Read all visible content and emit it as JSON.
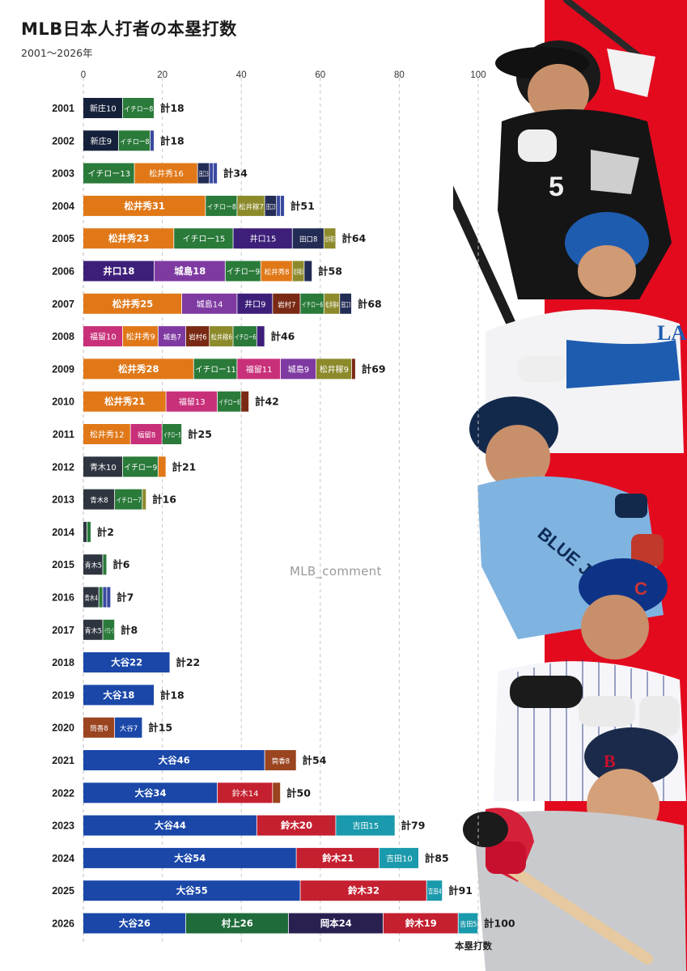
{
  "header": {
    "title": "MLB日本人打者の本塁打数",
    "subtitle": "2001〜2026年"
  },
  "watermark": "MLB_comment",
  "total_prefix": "計",
  "colors": {
    "新庄": "#15213a",
    "イチロー": "#2a7a3a",
    "松井秀": "#e07818",
    "松井稼": "#8c8a2a",
    "田口": "#232c55",
    "井口": "#3d1f7a",
    "城島": "#7f3aa2",
    "岩村": "#7a2a14",
    "福留": "#c8307a",
    "青木": "#2f3540",
    "大谷": "#1a47a8",
    "筒香": "#9a4420",
    "鈴木": "#c42030",
    "吉田": "#1a9aac",
    "村上": "#1f6b3a",
    "岡本": "#2a2050",
    "other": "#3a4aa0",
    "accent_band": "#e30a1e"
  },
  "photo_icons": [
    "player-photo-whitesox",
    "player-photo-dodgers",
    "player-photo-bluejays",
    "player-photo-cubs",
    "player-photo-redsox"
  ],
  "photo_text": [
    "5",
    "LA",
    "BLUE JAYS",
    "C",
    "B"
  ],
  "chart_data": {
    "type": "bar",
    "stacked": true,
    "orientation": "horizontal",
    "title": "MLB日本人打者の本塁打数",
    "subtitle": "2001〜2026年",
    "xlabel": "本塁打数",
    "xlim": [
      0,
      100
    ],
    "xticks": [
      0,
      20,
      40,
      60,
      80,
      100
    ],
    "grid": true,
    "rows": [
      {
        "year": "2001",
        "total": 18,
        "segments": [
          {
            "player": "新庄",
            "hr": 10
          },
          {
            "player": "イチロー",
            "hr": 8
          }
        ]
      },
      {
        "year": "2002",
        "total": 18,
        "segments": [
          {
            "player": "新庄",
            "hr": 9
          },
          {
            "player": "イチロー",
            "hr": 8
          },
          {
            "player": "other",
            "hr": 1
          }
        ]
      },
      {
        "year": "2003",
        "total": 34,
        "segments": [
          {
            "player": "イチロー",
            "hr": 13
          },
          {
            "player": "松井秀",
            "hr": 16
          },
          {
            "player": "田口",
            "hr": 3
          },
          {
            "player": "other",
            "hr": 1
          },
          {
            "player": "other",
            "hr": 1
          }
        ]
      },
      {
        "year": "2004",
        "total": 51,
        "segments": [
          {
            "player": "松井秀",
            "hr": 31
          },
          {
            "player": "イチロー",
            "hr": 8
          },
          {
            "player": "松井稼",
            "hr": 7
          },
          {
            "player": "田口",
            "hr": 3
          },
          {
            "player": "other",
            "hr": 1
          },
          {
            "player": "other",
            "hr": 1
          }
        ]
      },
      {
        "year": "2005",
        "total": 64,
        "segments": [
          {
            "player": "松井秀",
            "hr": 23
          },
          {
            "player": "イチロー",
            "hr": 15
          },
          {
            "player": "井口",
            "hr": 15
          },
          {
            "player": "田口",
            "hr": 8
          },
          {
            "player": "松井稼",
            "hr": 3
          }
        ]
      },
      {
        "year": "2006",
        "total": 58,
        "segments": [
          {
            "player": "井口",
            "hr": 18
          },
          {
            "player": "城島",
            "hr": 18
          },
          {
            "player": "イチロー",
            "hr": 9
          },
          {
            "player": "松井秀",
            "hr": 8
          },
          {
            "player": "松井稼",
            "hr": 3
          },
          {
            "player": "田口",
            "hr": 2
          }
        ]
      },
      {
        "year": "2007",
        "total": 68,
        "segments": [
          {
            "player": "松井秀",
            "hr": 25
          },
          {
            "player": "城島",
            "hr": 14
          },
          {
            "player": "井口",
            "hr": 9
          },
          {
            "player": "岩村",
            "hr": 7
          },
          {
            "player": "イチロー",
            "hr": 6
          },
          {
            "player": "松井稼",
            "hr": 4
          },
          {
            "player": "田口",
            "hr": 3
          }
        ]
      },
      {
        "year": "2008",
        "total": 46,
        "segments": [
          {
            "player": "福留",
            "hr": 10
          },
          {
            "player": "松井秀",
            "hr": 9
          },
          {
            "player": "城島",
            "hr": 7
          },
          {
            "player": "岩村",
            "hr": 6
          },
          {
            "player": "松井稼",
            "hr": 6
          },
          {
            "player": "イチロー",
            "hr": 6
          },
          {
            "player": "井口",
            "hr": 2
          }
        ]
      },
      {
        "year": "2009",
        "total": 69,
        "segments": [
          {
            "player": "松井秀",
            "hr": 28
          },
          {
            "player": "イチロー",
            "hr": 11
          },
          {
            "player": "福留",
            "hr": 11
          },
          {
            "player": "城島",
            "hr": 9
          },
          {
            "player": "松井稼",
            "hr": 9
          },
          {
            "player": "岩村",
            "hr": 1
          }
        ]
      },
      {
        "year": "2010",
        "total": 42,
        "segments": [
          {
            "player": "松井秀",
            "hr": 21
          },
          {
            "player": "福留",
            "hr": 13
          },
          {
            "player": "イチロー",
            "hr": 6
          },
          {
            "player": "岩村",
            "hr": 2
          }
        ]
      },
      {
        "year": "2011",
        "total": 25,
        "segments": [
          {
            "player": "松井秀",
            "hr": 12
          },
          {
            "player": "福留",
            "hr": 8
          },
          {
            "player": "イチロー",
            "hr": 5
          }
        ]
      },
      {
        "year": "2012",
        "total": 21,
        "segments": [
          {
            "player": "青木",
            "hr": 10
          },
          {
            "player": "イチロー",
            "hr": 9
          },
          {
            "player": "松井秀",
            "hr": 2
          }
        ]
      },
      {
        "year": "2013",
        "total": 16,
        "segments": [
          {
            "player": "青木",
            "hr": 8
          },
          {
            "player": "イチロー",
            "hr": 7
          },
          {
            "player": "松井稼",
            "hr": 1
          }
        ]
      },
      {
        "year": "2014",
        "total": 2,
        "segments": [
          {
            "player": "青木",
            "hr": 1
          },
          {
            "player": "イチロー",
            "hr": 1
          }
        ]
      },
      {
        "year": "2015",
        "total": 6,
        "segments": [
          {
            "player": "青木",
            "hr": 5
          },
          {
            "player": "イチロー",
            "hr": 1
          }
        ]
      },
      {
        "year": "2016",
        "total": 7,
        "segments": [
          {
            "player": "青木",
            "hr": 4
          },
          {
            "player": "イチロー",
            "hr": 1
          },
          {
            "player": "other",
            "hr": 1
          },
          {
            "player": "other",
            "hr": 1
          }
        ]
      },
      {
        "year": "2017",
        "total": 8,
        "segments": [
          {
            "player": "青木",
            "hr": 5
          },
          {
            "player": "イチロー",
            "hr": 3
          }
        ]
      },
      {
        "year": "2018",
        "total": 22,
        "segments": [
          {
            "player": "大谷",
            "hr": 22
          }
        ]
      },
      {
        "year": "2019",
        "total": 18,
        "segments": [
          {
            "player": "大谷",
            "hr": 18
          }
        ]
      },
      {
        "year": "2020",
        "total": 15,
        "segments": [
          {
            "player": "筒香",
            "hr": 8
          },
          {
            "player": "大谷",
            "hr": 7
          }
        ]
      },
      {
        "year": "2021",
        "total": 54,
        "segments": [
          {
            "player": "大谷",
            "hr": 46
          },
          {
            "player": "筒香",
            "hr": 8
          }
        ]
      },
      {
        "year": "2022",
        "total": 50,
        "segments": [
          {
            "player": "大谷",
            "hr": 34
          },
          {
            "player": "鈴木",
            "hr": 14
          },
          {
            "player": "筒香",
            "hr": 2
          }
        ]
      },
      {
        "year": "2023",
        "total": 79,
        "segments": [
          {
            "player": "大谷",
            "hr": 44
          },
          {
            "player": "鈴木",
            "hr": 20
          },
          {
            "player": "吉田",
            "hr": 15
          }
        ]
      },
      {
        "year": "2024",
        "total": 85,
        "segments": [
          {
            "player": "大谷",
            "hr": 54
          },
          {
            "player": "鈴木",
            "hr": 21
          },
          {
            "player": "吉田",
            "hr": 10
          }
        ]
      },
      {
        "year": "2025",
        "total": 91,
        "segments": [
          {
            "player": "大谷",
            "hr": 55
          },
          {
            "player": "鈴木",
            "hr": 32
          },
          {
            "player": "吉田",
            "hr": 4
          }
        ]
      },
      {
        "year": "2026",
        "total": 100,
        "segments": [
          {
            "player": "大谷",
            "hr": 26
          },
          {
            "player": "村上",
            "hr": 26
          },
          {
            "player": "岡本",
            "hr": 24
          },
          {
            "player": "鈴木",
            "hr": 19
          },
          {
            "player": "吉田",
            "hr": 5
          }
        ]
      }
    ]
  }
}
